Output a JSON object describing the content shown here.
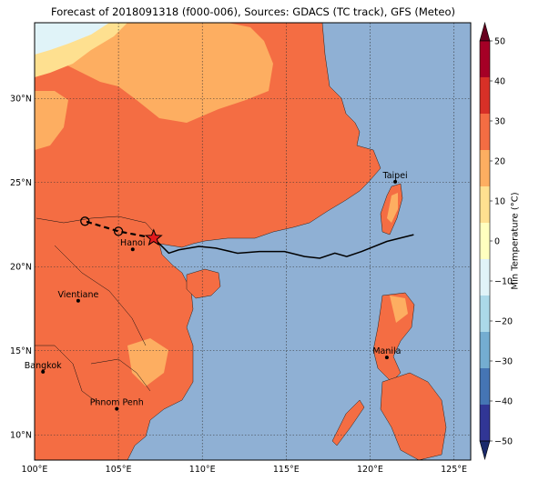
{
  "title": "Forecast of 2018091318 (f000-006), Sources: GDACS (TC track), GFS (Meteo)",
  "map": {
    "lon_ticks": [
      "100°E",
      "105°E",
      "110°E",
      "115°E",
      "120°E",
      "125°E"
    ],
    "lat_ticks": [
      "10°N",
      "15°N",
      "20°N",
      "25°N",
      "30°N"
    ],
    "lon_range": [
      100,
      126
    ],
    "lat_range": [
      8.5,
      34.5
    ],
    "sea_color": "#8fb0d4",
    "land_color_20_30": "#f46d43",
    "land_color_10_20": "#fdae61",
    "land_color_0_10": "#fee090",
    "land_color_minus10_0": "#e0f3f8"
  },
  "cities": [
    {
      "name": "Taipei",
      "lon": 121.5,
      "lat": 25.05
    },
    {
      "name": "Hanoi",
      "lon": 105.85,
      "lat": 21.03
    },
    {
      "name": "Vientiane",
      "lon": 102.6,
      "lat": 17.97
    },
    {
      "name": "Manila",
      "lon": 121.0,
      "lat": 14.6
    },
    {
      "name": "Bangkok",
      "lon": 100.5,
      "lat": 13.75
    },
    {
      "name": "Phnom Penh",
      "lon": 104.9,
      "lat": 11.55
    }
  ],
  "track": {
    "observed": [
      [
        122.6,
        21.9
      ],
      [
        121.0,
        21.5
      ],
      [
        119.5,
        20.9
      ],
      [
        118.6,
        20.6
      ],
      [
        117.9,
        20.8
      ],
      [
        117.0,
        20.5
      ],
      [
        116.1,
        20.6
      ],
      [
        114.9,
        20.9
      ],
      [
        113.4,
        20.9
      ],
      [
        112.1,
        20.8
      ],
      [
        110.8,
        21.1
      ],
      [
        109.8,
        21.2
      ],
      [
        108.6,
        21.0
      ],
      [
        108.0,
        20.8
      ],
      [
        107.1,
        21.7
      ]
    ],
    "forecast": [
      [
        107.1,
        21.7
      ],
      [
        105.0,
        22.1
      ],
      [
        103.0,
        22.7
      ]
    ],
    "forecast_points": [
      [
        105.0,
        22.1
      ],
      [
        103.0,
        22.7
      ]
    ],
    "current_position": [
      107.1,
      21.7
    ]
  },
  "colorbar": {
    "label": "Min Temperature (°C)",
    "ticks": [
      "50",
      "40",
      "30",
      "20",
      "10",
      "0",
      "−10",
      "−20",
      "−30",
      "−40",
      "−50"
    ],
    "colors": [
      "#67001f",
      "#a50026",
      "#d73027",
      "#f46d43",
      "#fdae61",
      "#fee090",
      "#ffffbf",
      "#e0f3f8",
      "#abd9e9",
      "#74add1",
      "#4575b4",
      "#313695",
      "#1b2a6b"
    ]
  }
}
